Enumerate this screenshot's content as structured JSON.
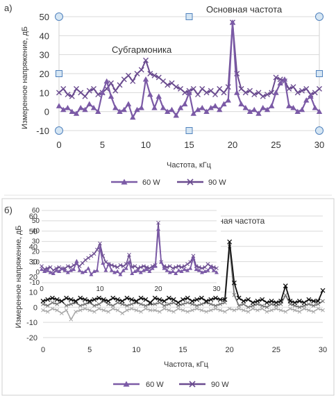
{
  "colors": {
    "series_60w": "#7b5aa6",
    "series_90w": "#6a4b8f",
    "grid": "#d9d9d9",
    "handle_fill": "#d6e6f3",
    "handle_stroke": "#4f81bd",
    "inset_dark": "#111111",
    "inset_grey": "#777777",
    "inset_light": "#a8a8a8"
  },
  "chart_data": [
    {
      "panel_label": "а)",
      "type": "line",
      "xlabel": "Частота, кГц",
      "ylabel": "Измеренное напряжение, дБ",
      "xlim": [
        0,
        30
      ],
      "ylim": [
        -10,
        50
      ],
      "xticks": [
        0,
        5,
        10,
        15,
        20,
        25,
        30
      ],
      "yticks": [
        -10,
        0,
        10,
        20,
        30,
        40,
        50
      ],
      "grid": "horizontal",
      "legend_position": "bottom",
      "annotations": [
        "Основная частота",
        "Субгармоника"
      ],
      "x": [
        0,
        0.5,
        1,
        1.5,
        2,
        2.5,
        3,
        3.5,
        4,
        4.5,
        5,
        5.5,
        6,
        6.5,
        7,
        7.5,
        8,
        8.5,
        9,
        9.5,
        10,
        10.5,
        11,
        11.5,
        12,
        12.5,
        13,
        13.5,
        14,
        14.5,
        15,
        15.5,
        16,
        16.5,
        17,
        17.5,
        18,
        18.5,
        19,
        19.5,
        20,
        20.5,
        21,
        21.5,
        22,
        22.5,
        23,
        23.5,
        24,
        24.5,
        25,
        25.5,
        26,
        26.5,
        27,
        27.5,
        28,
        28.5,
        29,
        29.5,
        30
      ],
      "series": [
        {
          "name": "60 W",
          "values": [
            3,
            1,
            2,
            0,
            -1,
            2,
            1,
            4,
            2,
            0,
            10,
            16,
            8,
            2,
            0,
            1,
            4,
            -3,
            1,
            2,
            17,
            9,
            2,
            8,
            2,
            0,
            1,
            -2,
            2,
            4,
            10,
            -1,
            1,
            2,
            0,
            2,
            3,
            1,
            4,
            6,
            47,
            10,
            4,
            2,
            0,
            1,
            -1,
            2,
            1,
            3,
            10,
            15,
            17,
            3,
            2,
            0,
            1,
            6,
            8,
            2,
            0
          ]
        },
        {
          "name": "90 W",
          "values": [
            10,
            12,
            9,
            8,
            12,
            10,
            8,
            11,
            12,
            9,
            10,
            12,
            15,
            11,
            14,
            17,
            19,
            16,
            20,
            22,
            27,
            20,
            19,
            18,
            16,
            14,
            15,
            13,
            12,
            10,
            11,
            12,
            9,
            12,
            10,
            11,
            9,
            12,
            10,
            13,
            47,
            20,
            12,
            10,
            11,
            9,
            10,
            8,
            9,
            10,
            18,
            17,
            16,
            12,
            13,
            10,
            11,
            12,
            9,
            10,
            12
          ]
        }
      ]
    },
    {
      "panel_label": "б)",
      "type": "line",
      "xlabel": "Частота, кГц",
      "ylabel": "Измеренное напряжение, дБ",
      "xlim": [
        0,
        30
      ],
      "ylim": [
        -20,
        60
      ],
      "xticks": [
        0,
        5,
        10,
        15,
        20,
        25,
        30
      ],
      "yticks": [
        -20,
        -10,
        0,
        10,
        20,
        30,
        40,
        50,
        60
      ],
      "grid": "horizontal",
      "legend_position": "bottom",
      "annotations": [
        "вная частота"
      ],
      "legend": [
        "60 W",
        "90 W"
      ],
      "underlay_x": [
        0,
        0.5,
        1,
        1.5,
        2,
        2.5,
        3,
        3.5,
        4,
        4.5,
        5,
        5.5,
        6,
        6.5,
        7,
        7.5,
        8,
        8.5,
        9,
        9.5,
        10,
        10.5,
        11,
        11.5,
        12,
        12.5,
        13,
        13.5,
        14,
        14.5,
        15,
        15.5,
        16,
        16.5,
        17,
        17.5,
        18,
        18.5,
        19,
        19.5,
        20,
        20.5,
        21,
        21.5,
        22,
        22.5,
        23,
        23.5,
        24,
        24.5,
        25,
        25.5,
        26,
        26.5,
        27,
        27.5,
        28,
        28.5,
        29,
        29.5,
        30
      ],
      "underlay_series": [
        {
          "role": "dark",
          "values": [
            4,
            5,
            6,
            5,
            4,
            6,
            5,
            4,
            6,
            5,
            4,
            5,
            6,
            5,
            4,
            6,
            5,
            4,
            6,
            5,
            4,
            6,
            5,
            3,
            6,
            5,
            4,
            6,
            5,
            3,
            5,
            6,
            4,
            5,
            6,
            4,
            5,
            6,
            5,
            5,
            43,
            16,
            6,
            4,
            5,
            3,
            4,
            5,
            3,
            4,
            3,
            4,
            14,
            4,
            3,
            4,
            3,
            5,
            4,
            4,
            11
          ]
        },
        {
          "role": "grey",
          "values": [
            2,
            1,
            3,
            2,
            4,
            1,
            2,
            3,
            1,
            2,
            3,
            1,
            2,
            4,
            2,
            1,
            3,
            2,
            1,
            2,
            3,
            2,
            1,
            2,
            2,
            3,
            1,
            2,
            3,
            1,
            2,
            3,
            2,
            1,
            2,
            3,
            2,
            1,
            2,
            3,
            40,
            8,
            1,
            2,
            0,
            1,
            2,
            1,
            0,
            2,
            1,
            2,
            8,
            2,
            1,
            0,
            1,
            2,
            1,
            2,
            4
          ]
        },
        {
          "role": "light",
          "values": [
            -2,
            -3,
            -1,
            -2,
            -4,
            -2,
            -8,
            -3,
            -2,
            -1,
            -2,
            -3,
            -1,
            -2,
            -3,
            -1,
            -2,
            -4,
            -2,
            -1,
            -2,
            -3,
            -1,
            -2,
            -2,
            -3,
            -1,
            -2,
            -3,
            -1,
            -2,
            -3,
            -2,
            -1,
            -2,
            -3,
            -2,
            -1,
            -2,
            -3,
            -1,
            -2,
            -1,
            -2,
            -3,
            -1,
            -2,
            -1,
            -3,
            -2,
            -1,
            -2,
            -3,
            -1,
            -2,
            -3,
            -1,
            -2,
            -3,
            -1,
            -2
          ]
        }
      ],
      "inset": {
        "xlim": [
          0,
          30
        ],
        "ylim": [
          -10,
          60
        ],
        "xticks": [
          0,
          10,
          20,
          30
        ],
        "yticks": [
          -10,
          0,
          10,
          20,
          30,
          40,
          50,
          60
        ],
        "x": [
          0,
          0.5,
          1,
          1.5,
          2,
          2.5,
          3,
          3.5,
          4,
          4.5,
          5,
          5.5,
          6,
          6.5,
          7,
          7.5,
          8,
          8.5,
          9,
          9.5,
          10,
          10.5,
          11,
          11.5,
          12,
          12.5,
          13,
          13.5,
          14,
          14.5,
          15,
          15.5,
          16,
          16.5,
          17,
          17.5,
          18,
          18.5,
          19,
          19.5,
          20,
          20.5,
          21,
          21.5,
          22,
          22.5,
          23,
          23.5,
          24,
          24.5,
          25,
          25.5,
          26,
          26.5,
          27,
          27.5,
          28,
          28.5,
          29,
          29.5,
          30
        ],
        "series": [
          {
            "name": "60 W",
            "values": [
              3,
              1,
              2,
              0,
              -1,
              2,
              1,
              4,
              2,
              0,
              2,
              3,
              11,
              2,
              0,
              1,
              4,
              -2,
              1,
              2,
              24,
              9,
              2,
              8,
              2,
              0,
              1,
              -2,
              2,
              4,
              10,
              -1,
              1,
              2,
              0,
              2,
              3,
              1,
              4,
              6,
              42,
              10,
              4,
              2,
              0,
              1,
              -1,
              2,
              1,
              3,
              2,
              4,
              14,
              3,
              2,
              0,
              1,
              2,
              5,
              2,
              0
            ]
          },
          {
            "name": "90 W",
            "values": [
              6,
              3,
              4,
              5,
              2,
              4,
              5,
              3,
              4,
              6,
              5,
              7,
              8,
              6,
              9,
              12,
              14,
              16,
              18,
              22,
              28,
              16,
              10,
              8,
              7,
              6,
              5,
              7,
              6,
              8,
              17,
              5,
              6,
              4,
              5,
              6,
              5,
              4,
              6,
              7,
              48,
              10,
              6,
              5,
              6,
              4,
              5,
              6,
              5,
              6,
              8,
              10,
              16,
              6,
              5,
              4,
              5,
              8,
              6,
              5,
              4
            ]
          }
        ]
      }
    }
  ]
}
